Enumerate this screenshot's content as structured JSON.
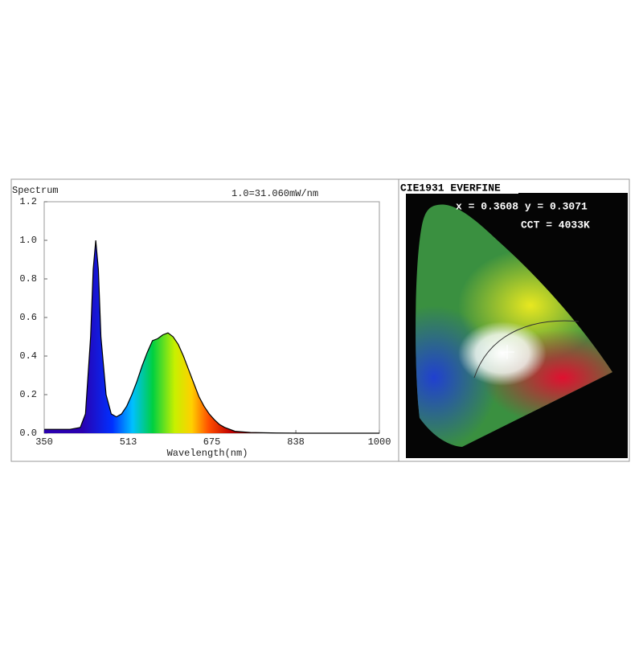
{
  "chart_data": [
    {
      "type": "area",
      "title": "Spectrum",
      "annotation": "1.0=31.060mW/nm",
      "x_label": "Wavelength(nm)",
      "x": [
        350,
        380,
        400,
        420,
        430,
        440,
        445,
        450,
        455,
        460,
        470,
        480,
        490,
        500,
        510,
        520,
        530,
        540,
        550,
        560,
        570,
        580,
        590,
        600,
        610,
        620,
        630,
        640,
        650,
        660,
        670,
        680,
        690,
        700,
        720,
        750,
        800,
        850,
        1000
      ],
      "values": [
        0.02,
        0.02,
        0.02,
        0.03,
        0.1,
        0.5,
        0.85,
        1.0,
        0.85,
        0.5,
        0.2,
        0.1,
        0.085,
        0.1,
        0.14,
        0.2,
        0.27,
        0.35,
        0.42,
        0.48,
        0.49,
        0.51,
        0.52,
        0.5,
        0.46,
        0.4,
        0.33,
        0.26,
        0.19,
        0.14,
        0.1,
        0.07,
        0.045,
        0.03,
        0.01,
        0.004,
        0.001,
        0,
        0
      ],
      "color": "#000000",
      "xlim": [
        350,
        1000
      ],
      "xticks": [
        350,
        513,
        675,
        838,
        1000
      ],
      "ylim": [
        0,
        1.2
      ],
      "yticks": [
        {
          "value": 0,
          "label": "0.0"
        },
        0.2,
        0.4,
        0.6,
        0.8,
        {
          "value": 1,
          "label": "1.0"
        },
        1.2
      ]
    },
    {
      "type": "chromaticity",
      "title": "CIE1931 EVERFINE",
      "annotations": [
        "x = 0.3608 y = 0.3071",
        "CCT = 4033K"
      ]
    }
  ]
}
